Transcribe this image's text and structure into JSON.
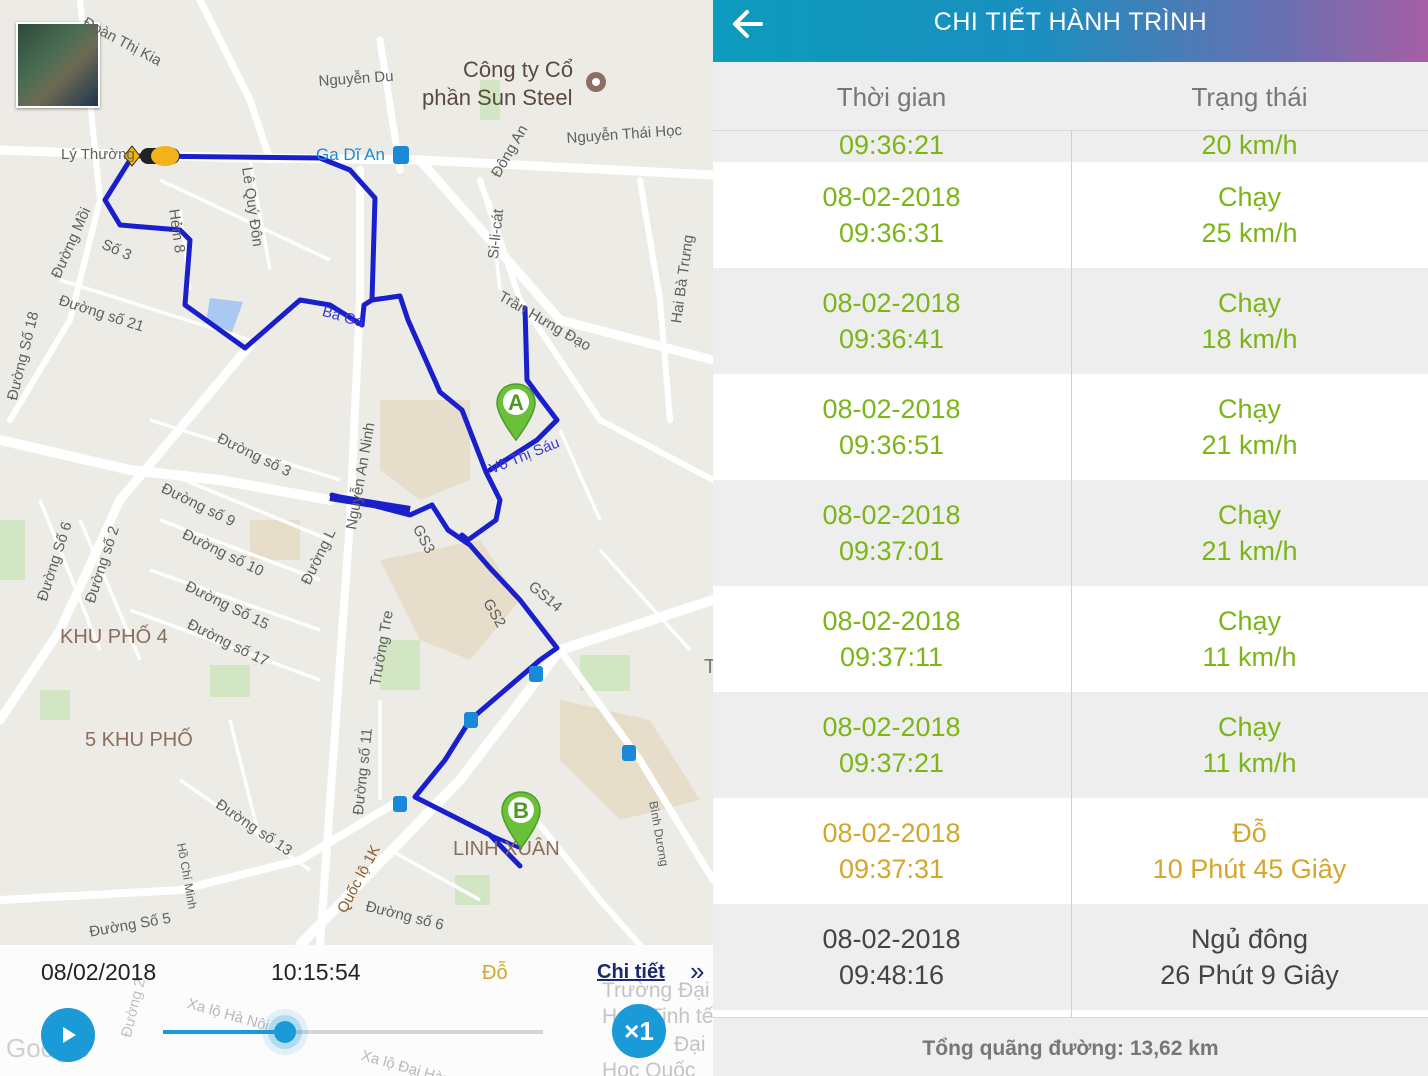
{
  "map": {
    "poi_name_line1": "Công ty Cổ",
    "poi_name_line2": "phần Sun Steel",
    "station": "Ga Dĩ An",
    "streets": [
      "Đoàn Thị Kia",
      "Nguyễn Du",
      "Lý Thường",
      "Đông An",
      "Nguyễn Thái Học",
      "Lê Quý Đôn",
      "Hẻm 8",
      "Số 3",
      "Đường Mồi",
      "Đường Số 18",
      "Đường số 21",
      "Bà Ga",
      "Si-li-cát",
      "Trần Hưng Đạo",
      "Hai Bà Trưng",
      "Võ Thị Sáu",
      "Đường số 3",
      "Đường số 9",
      "Đường số 10",
      "Nguyễn An Ninh",
      "GS3",
      "GS14",
      "GS2",
      "Đường L",
      "Đường Số 6",
      "Đường số 2",
      "Đường Số 15",
      "Đường số 17",
      "Trường Tre",
      "Đường số 11",
      "Đường số 13",
      "Quốc lộ 1K",
      "Đường số 6",
      "Đường Số 5",
      "Hồ Chí Minh",
      "Bình Dương",
      "Xa lộ Hà Nội",
      "Đường 2",
      "Xa lộ Đại Hàn",
      "Trường Đại",
      "Học",
      "Tinh tế",
      "Đại",
      "Học Quốc"
    ],
    "areas": [
      "KHU PHỐ 4",
      "5 KHU PHỐ",
      "LINH XUÂN"
    ],
    "marker_a": "A",
    "marker_b": "B",
    "google": "Google",
    "partial_label": "T"
  },
  "controls": {
    "date": "08/02/2018",
    "time": "10:15:54",
    "status": "Đỗ",
    "detail_link": "Chi tiết",
    "detail_chevron": "»",
    "speed": "×1",
    "progress": 0.32
  },
  "header": {
    "title": "CHI TIẾT HÀNH TRÌNH"
  },
  "table": {
    "col_time": "Thời gian",
    "col_status": "Trạng thái",
    "partial_row": {
      "time": "09:36:21",
      "status": "20 km/h"
    },
    "rows": [
      {
        "date": "08-02-2018",
        "time": "09:36:31",
        "state": "Chạy",
        "detail": "25 km/h",
        "kind": "run"
      },
      {
        "date": "08-02-2018",
        "time": "09:36:41",
        "state": "Chạy",
        "detail": "18 km/h",
        "kind": "run"
      },
      {
        "date": "08-02-2018",
        "time": "09:36:51",
        "state": "Chạy",
        "detail": "21 km/h",
        "kind": "run"
      },
      {
        "date": "08-02-2018",
        "time": "09:37:01",
        "state": "Chạy",
        "detail": "21 km/h",
        "kind": "run"
      },
      {
        "date": "08-02-2018",
        "time": "09:37:11",
        "state": "Chạy",
        "detail": "11 km/h",
        "kind": "run"
      },
      {
        "date": "08-02-2018",
        "time": "09:37:21",
        "state": "Chạy",
        "detail": "11 km/h",
        "kind": "run"
      },
      {
        "date": "08-02-2018",
        "time": "09:37:31",
        "state": "Đỗ",
        "detail": "10 Phút 45 Giây",
        "kind": "park"
      },
      {
        "date": "08-02-2018",
        "time": "09:48:16",
        "state": "Ngủ đông",
        "detail": "26 Phút 9 Giây",
        "kind": "sleep"
      }
    ],
    "total": "Tổng quãng đường: 13,62 km"
  },
  "colors": {
    "run": "#7cb518",
    "park": "#d4a62a",
    "sleep": "#444444",
    "route": "#1a1fcc",
    "accent": "#1a9ad6",
    "marker": "#69c13a"
  }
}
